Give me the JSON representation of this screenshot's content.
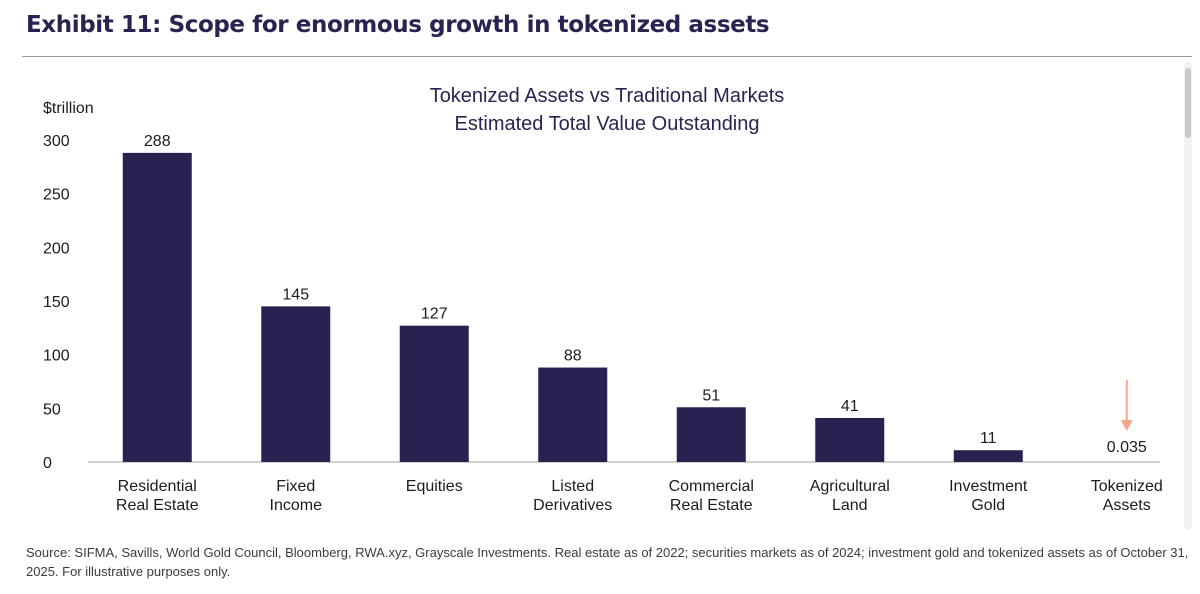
{
  "header": {
    "exhibit_title": "Exhibit 11: Scope for enormous growth in tokenized assets"
  },
  "footer": {
    "source_note": "Source: SIFMA, Savills, World Gold Council, Bloomberg, RWA.xyz, Grayscale Investments. Real estate as of 2022; securities markets as of 2024; investment gold and tokenized assets as of October 31, 2025. For illustrative purposes only."
  },
  "colors": {
    "bar": "#2b2150",
    "arrow": "#f4a58a",
    "title": "#2a2250"
  },
  "chart_data": {
    "type": "bar",
    "title": "Tokenized Assets vs Traditional Markets",
    "subtitle": "Estimated Total Value Outstanding",
    "ylabel": "$trillion",
    "xlabel": "",
    "ylim": [
      0,
      300
    ],
    "yticks": [
      0,
      50,
      100,
      150,
      200,
      250,
      300
    ],
    "grid": false,
    "legend": "none",
    "categories": [
      [
        "Residential",
        "Real Estate"
      ],
      [
        "Fixed",
        "Income"
      ],
      [
        "Equities"
      ],
      [
        "Listed",
        "Derivatives"
      ],
      [
        "Commercial",
        "Real Estate"
      ],
      [
        "Agricultural",
        "Land"
      ],
      [
        "Investment",
        "Gold"
      ],
      [
        "Tokenized",
        "Assets"
      ]
    ],
    "values": [
      288,
      145,
      127,
      88,
      51,
      41,
      11,
      0.035
    ],
    "value_labels": [
      "288",
      "145",
      "127",
      "88",
      "51",
      "41",
      "11",
      "0.035"
    ],
    "annotation": "down arrow pointing to Tokenized Assets value"
  }
}
